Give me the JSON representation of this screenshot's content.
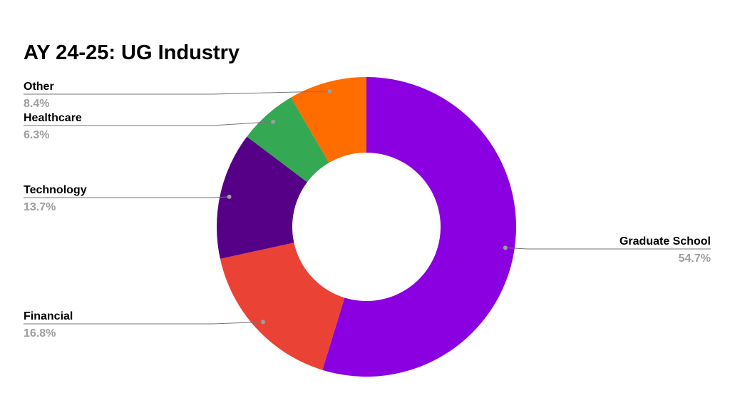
{
  "chart_data": {
    "type": "pie",
    "title": "AY 24-25: UG Industry",
    "donut": true,
    "legend": "labels-with-leader-lines",
    "slices": [
      {
        "label": "Graduate School",
        "value": 54.7,
        "display": "54.7%",
        "color": "#8B00E0"
      },
      {
        "label": "Financial",
        "value": 16.8,
        "display": "16.8%",
        "color": "#EA4335"
      },
      {
        "label": "Technology",
        "value": 13.7,
        "display": "13.7%",
        "color": "#560087"
      },
      {
        "label": "Healthcare",
        "value": 6.3,
        "display": "6.3%",
        "color": "#34A853"
      },
      {
        "label": "Other",
        "value": 8.4,
        "display": "8.4%",
        "color": "#FF6D01"
      }
    ]
  }
}
